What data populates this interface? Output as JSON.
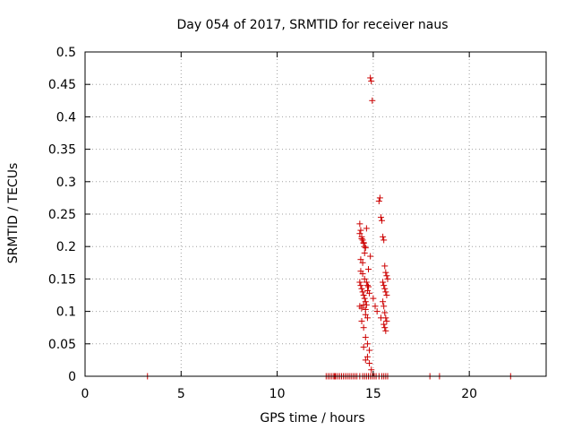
{
  "chart_data": {
    "type": "scatter",
    "title": "Day 054 of 2017, SRMTID for receiver naus",
    "xlabel": "GPS time / hours",
    "ylabel": "SRMTID / TECUs",
    "xlim": [
      0,
      24
    ],
    "ylim": [
      0,
      0.5
    ],
    "grid": true,
    "marker": "+",
    "marker_color": "#cc0000",
    "x_ticks": [
      0,
      5,
      10,
      15,
      20
    ],
    "x_tick_labels": [
      "0",
      "5",
      "10",
      "15",
      "20"
    ],
    "y_ticks": [
      0,
      0.05,
      0.1,
      0.15,
      0.2,
      0.25,
      0.3,
      0.35,
      0.4,
      0.45,
      0.5
    ],
    "y_tick_labels": [
      "0",
      "0.05",
      "0.1",
      "0.15",
      "0.2",
      "0.25",
      "0.3",
      "0.35",
      "0.4",
      "0.45",
      "0.5"
    ],
    "series": [
      {
        "name": "SRMTID",
        "x": [
          3.25,
          12.55,
          12.65,
          12.75,
          12.85,
          12.95,
          13.0,
          13.05,
          13.15,
          13.25,
          13.35,
          13.45,
          13.55,
          13.65,
          13.75,
          13.85,
          13.95,
          14.05,
          14.15,
          14.3,
          14.45,
          14.55,
          14.65,
          14.75,
          14.85,
          14.95,
          15.05,
          15.15,
          15.3,
          15.45,
          15.55,
          15.65,
          15.75,
          17.95,
          18.45,
          22.15,
          14.3,
          14.35,
          14.4,
          14.45,
          14.5,
          14.55,
          14.3,
          14.4,
          14.5,
          14.6,
          14.35,
          14.45,
          14.55,
          14.65,
          14.3,
          14.35,
          14.4,
          14.45,
          14.5,
          14.55,
          14.6,
          14.65,
          14.7,
          14.75,
          14.3,
          14.4,
          14.5,
          14.6,
          14.7,
          14.8,
          14.35,
          14.45,
          14.55,
          14.65,
          14.75,
          14.85,
          14.4,
          14.5,
          14.6,
          14.7,
          14.8,
          14.5,
          14.6,
          14.7,
          14.8,
          14.9,
          14.6,
          14.7,
          14.85,
          14.9,
          14.95,
          15.0,
          15.1,
          15.2,
          15.3,
          15.35,
          15.4,
          15.45,
          15.5,
          15.55,
          15.6,
          15.65,
          15.7,
          15.75,
          15.5,
          15.55,
          15.6,
          15.65,
          15.7,
          15.5,
          15.55,
          15.6,
          15.65,
          15.7,
          15.4,
          15.55,
          15.6,
          15.65
        ],
        "y": [
          0,
          0,
          0,
          0,
          0,
          0,
          0,
          0,
          0,
          0,
          0,
          0,
          0,
          0,
          0,
          0,
          0,
          0,
          0,
          0,
          0,
          0,
          0,
          0,
          0,
          0,
          0,
          0,
          0,
          0,
          0,
          0,
          0,
          0,
          0,
          0,
          0.235,
          0.225,
          0.215,
          0.21,
          0.205,
          0.2,
          0.22,
          0.212,
          0.206,
          0.198,
          0.18,
          0.175,
          0.19,
          0.228,
          0.145,
          0.14,
          0.135,
          0.13,
          0.125,
          0.12,
          0.115,
          0.11,
          0.14,
          0.138,
          0.108,
          0.105,
          0.11,
          0.103,
          0.132,
          0.128,
          0.162,
          0.158,
          0.15,
          0.145,
          0.165,
          0.185,
          0.085,
          0.075,
          0.06,
          0.05,
          0.04,
          0.045,
          0.025,
          0.03,
          0.02,
          0.01,
          0.095,
          0.09,
          0.46,
          0.455,
          0.425,
          0.12,
          0.108,
          0.1,
          0.27,
          0.275,
          0.245,
          0.24,
          0.215,
          0.21,
          0.17,
          0.16,
          0.155,
          0.15,
          0.145,
          0.14,
          0.135,
          0.13,
          0.125,
          0.115,
          0.108,
          0.098,
          0.09,
          0.085,
          0.09,
          0.08,
          0.075,
          0.07
        ]
      }
    ]
  }
}
